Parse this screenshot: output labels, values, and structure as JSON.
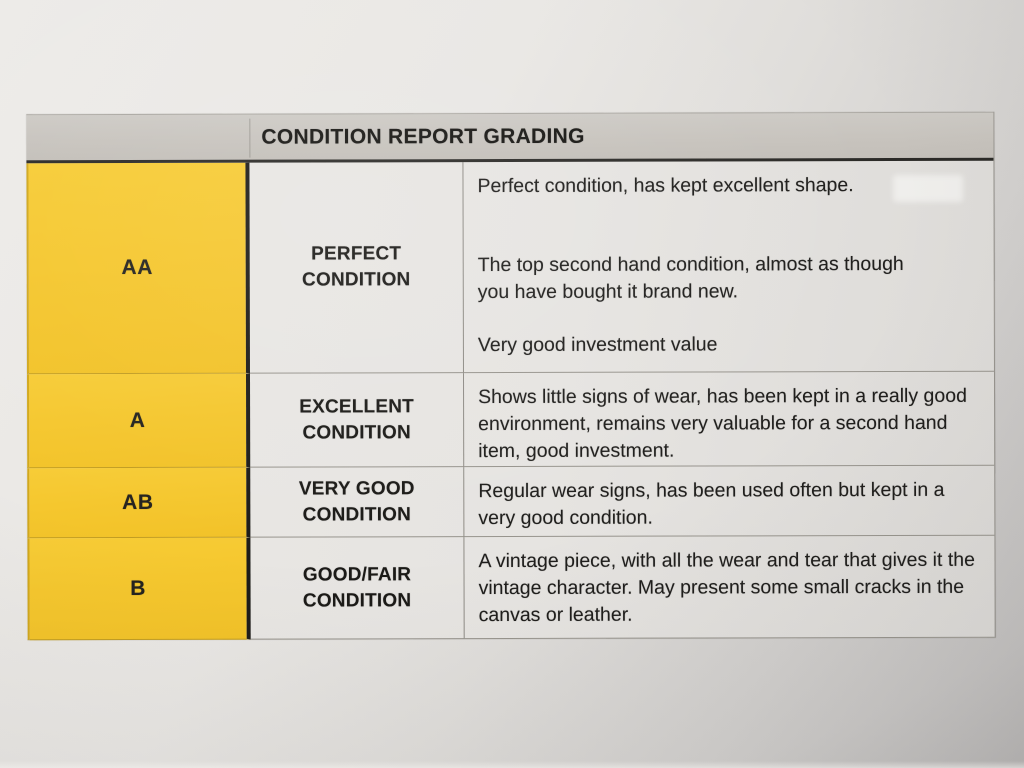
{
  "document": {
    "title": "CONDITION REPORT GRADING",
    "rows": [
      {
        "grade": "AA",
        "label": "PERFECT CONDITION",
        "paragraphs": [
          "Perfect condition, has kept excellent shape.",
          "The top second hand condition, almost as though you have bought it brand new.",
          "Very good investment value"
        ]
      },
      {
        "grade": "A",
        "label": "EXCELLENT CONDITION",
        "paragraphs": [
          "Shows little signs of wear, has been kept in a really good environment, remains very valuable for a second hand item, good investment."
        ]
      },
      {
        "grade": "AB",
        "label": "VERY GOOD CONDITION",
        "paragraphs": [
          "Regular wear signs, has been used often but kept in a very good condition."
        ]
      },
      {
        "grade": "B",
        "label": "GOOD/FAIR CONDITION",
        "paragraphs": [
          "A vintage piece, with all the wear and tear that gives it the vintage character. May present some small cracks in the canvas or leather."
        ]
      }
    ],
    "colors": {
      "grade_column_yellow": "#F5C72E",
      "header_bar_gray": "#C7C3BD",
      "cell_background": "#E8E6E3",
      "text": "#1F1E1C"
    }
  }
}
